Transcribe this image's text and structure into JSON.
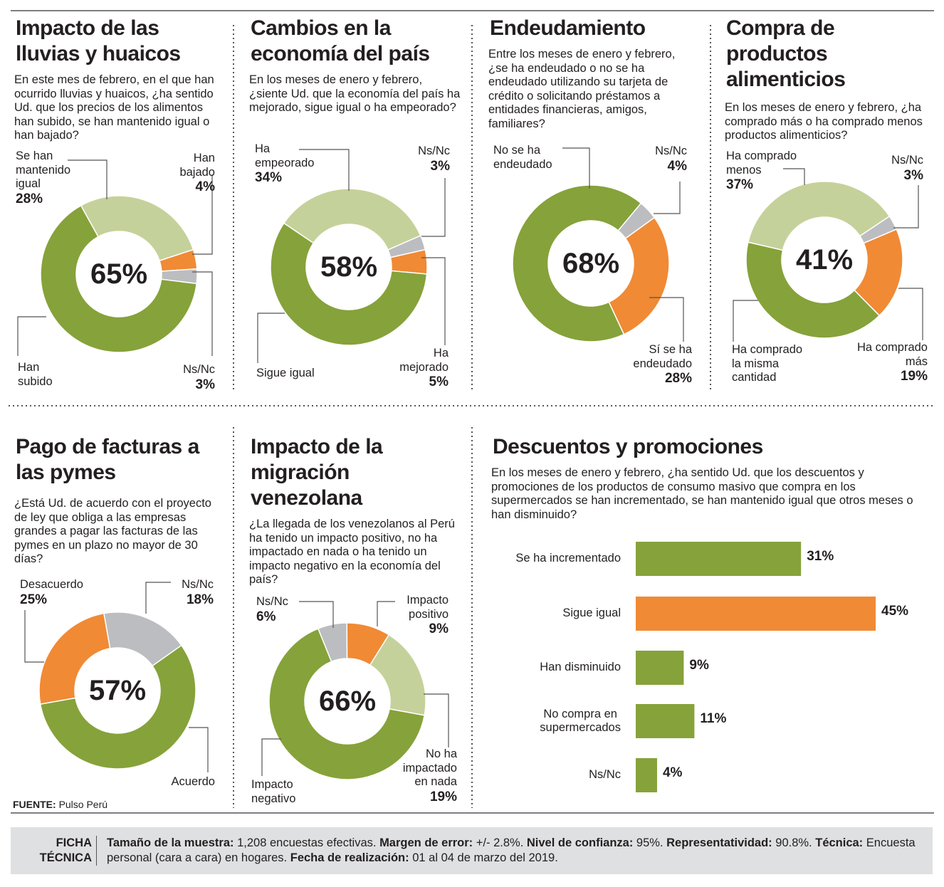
{
  "chart_data": [
    {
      "type": "donut",
      "title": "Impacto de las lluvias y huaicos",
      "subtitle": "En este mes de febrero, en el que han ocurrido lluvias y huaicos, ¿ha sentido Ud. que los precios de los alimentos han subido, se han mantenido igual o han bajado?",
      "categories": [
        "Se han\nmantenido\nigual",
        "Han\nbajado",
        "Ns/Nc",
        "Han\nsubido"
      ],
      "values": [
        28,
        4,
        3,
        65
      ],
      "value_labels": [
        "28%",
        "4%",
        "3%",
        "65%"
      ],
      "colors": [
        "#c5d19a",
        "#f08a35",
        "#bcbdc0",
        "#86a23a"
      ]
    },
    {
      "type": "donut",
      "title": "Cambios en la economía del país",
      "subtitle": "En los meses de enero y febrero, ¿siente Ud. que la economía del país ha mejorado, sigue igual o ha empeorado?",
      "categories": [
        "Ha\nempeorado",
        "Ns/Nc",
        "Ha\nmejorado",
        "Sigue igual"
      ],
      "values": [
        34,
        3,
        5,
        58
      ],
      "value_labels": [
        "34%",
        "3%",
        "5%",
        "58%"
      ],
      "colors": [
        "#c5d19a",
        "#bcbdc0",
        "#f08a35",
        "#86a23a"
      ]
    },
    {
      "type": "donut",
      "title": "Endeudamiento",
      "subtitle": "Entre los meses de enero y febrero, ¿se ha endeudado o no se ha endeudado utilizando su tarjeta de crédito o solicitando préstamos a entidades financieras, amigos, familiares?",
      "categories": [
        "No se ha\nendeudado",
        "Ns/Nc",
        "Sí se ha\nendeudado"
      ],
      "values": [
        68,
        4,
        28
      ],
      "value_labels": [
        "68%",
        "4%",
        "28%"
      ],
      "colors": [
        "#86a23a",
        "#bcbdc0",
        "#f08a35"
      ]
    },
    {
      "type": "donut",
      "title": "Compra de productos alimenticios",
      "subtitle": "En los meses de enero y febrero, ¿ha comprado más o ha comprado menos productos alimenticios?",
      "categories": [
        "Ha comprado\nmenos",
        "Ns/Nc",
        "Ha comprado\nmás",
        "Ha comprado\nla misma\ncantidad"
      ],
      "values": [
        37,
        3,
        19,
        41
      ],
      "value_labels": [
        "37%",
        "3%",
        "19%",
        "41%"
      ],
      "colors": [
        "#c5d19a",
        "#bcbdc0",
        "#f08a35",
        "#86a23a"
      ]
    },
    {
      "type": "donut",
      "title": "Pago de facturas a las pymes",
      "subtitle": "¿Está Ud. de acuerdo con el proyecto de ley que obliga a las empresas grandes a pagar las facturas de las pymes en un plazo no mayor de 30 días?",
      "categories": [
        "Ns/Nc",
        "Acuerdo",
        "Desacuerdo"
      ],
      "values": [
        18,
        57,
        25
      ],
      "value_labels": [
        "18%",
        "57%",
        "25%"
      ],
      "colors": [
        "#bcbdc0",
        "#86a23a",
        "#f08a35"
      ]
    },
    {
      "type": "donut",
      "title": "Impacto de la migración venezolana",
      "subtitle": "¿La llegada de los venezolanos al Perú ha tenido un impacto positivo, no ha impactado en nada o ha tenido un impacto negativo en la economía del país?",
      "categories": [
        "Ns/Nc",
        "Impacto\npositivo",
        "No ha\nimpactado\nen nada",
        "Impacto\nnegativo"
      ],
      "values": [
        6,
        9,
        19,
        66
      ],
      "value_labels": [
        "6%",
        "9%",
        "19%",
        "66%"
      ],
      "colors": [
        "#bcbdc0",
        "#f08a35",
        "#c5d19a",
        "#86a23a"
      ]
    },
    {
      "type": "hbar",
      "title": "Descuentos y promociones",
      "subtitle": "En los meses de enero y febrero, ¿ha sentido Ud. que los descuentos y promociones de los productos de consumo masivo que compra en los supermercados se han incrementado, se han mantenido igual que otros meses o han disminuido?",
      "categories": [
        "Se ha incrementado",
        "Sigue igual",
        "Han disminuido",
        "No compra en\nsupermercados",
        "Ns/Nc"
      ],
      "values": [
        31,
        45,
        9,
        11,
        4
      ],
      "value_labels": [
        "31%",
        "45%",
        "9%",
        "11%",
        "4%"
      ],
      "colors": [
        "#86a23a",
        "#f08a35",
        "#86a23a",
        "#86a23a",
        "#86a23a"
      ]
    }
  ],
  "source": {
    "label": "FUENTE:",
    "text": "Pulso Perú"
  },
  "ficha": {
    "title": "FICHA\nTÉCNICA",
    "items": [
      {
        "label": "Tamaño de la muestra:",
        "text": "1,208 encuestas efectivas."
      },
      {
        "label": "Margen de error:",
        "text": "+/- 2.8%."
      },
      {
        "label": "Nivel de confianza:",
        "text": "95%."
      },
      {
        "label": "Representatividad:",
        "text": "90.8%."
      },
      {
        "label": "Técnica:",
        "text": "Encuesta personal (cara a cara) en hogares."
      },
      {
        "label": "Fecha de realización:",
        "text": "01 al 04 de marzo del 2019."
      }
    ]
  }
}
